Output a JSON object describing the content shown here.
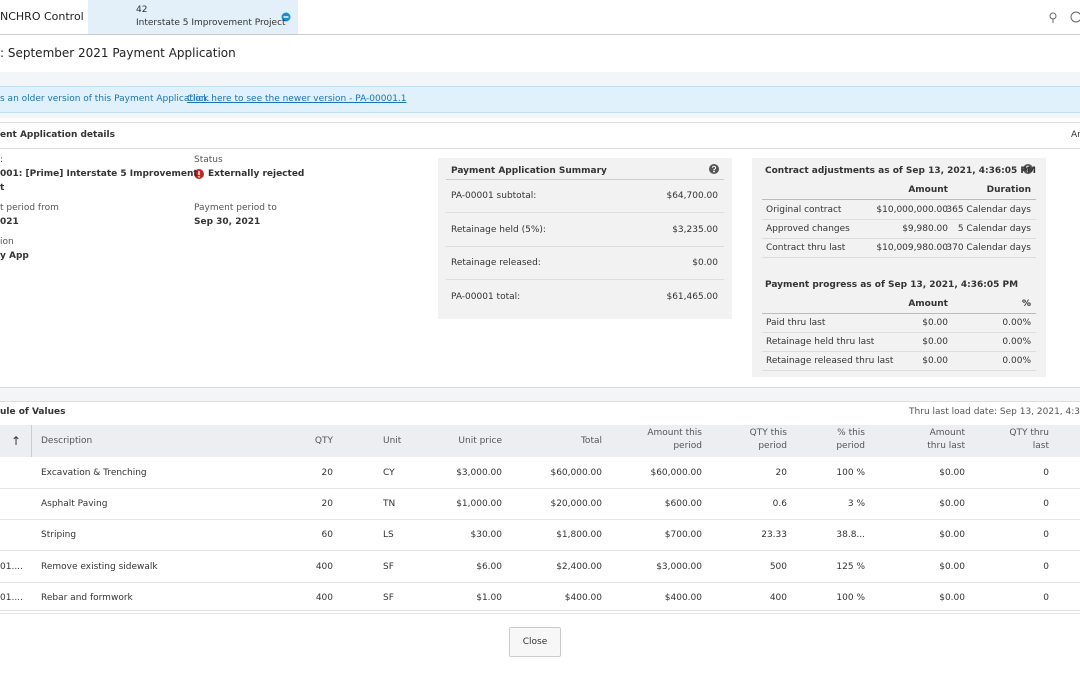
{
  "header": {
    "app_name": "NCHRO Control",
    "tab_number": "42",
    "tab_project": "Interstate 5 Improvement Project"
  },
  "title": ": September 2021 Payment Application",
  "banner": {
    "text": "s an older version of this Payment Application.",
    "link": "Click here to see the newer version - PA-00001.1"
  },
  "details": {
    "heading": "ent Application details",
    "heading_right": "Ar",
    "fields": [
      {
        "label": ":",
        "value": "001: [Prime] Interstate 5 Improvement\nt"
      },
      {
        "label": "t period from",
        "value": "021"
      },
      {
        "label": "ion",
        "value": "y App"
      },
      {
        "label": "Status",
        "value": "Externally rejected"
      },
      {
        "label": "Payment period to",
        "value": "Sep 30, 2021"
      }
    ]
  },
  "summary": {
    "title": "Payment Application Summary",
    "rows": [
      [
        "PA-00001 subtotal:",
        "$64,700.00"
      ],
      [
        "Retainage held (5%):",
        "$3,235.00"
      ],
      [
        "Retainage released:",
        "$0.00"
      ],
      [
        "PA-00001 total:",
        "$61,465.00"
      ]
    ]
  },
  "contract": {
    "title": "Contract adjustments as of Sep 13, 2021, 4:36:05 PM",
    "headers": [
      "Amount",
      "Duration"
    ],
    "rows": [
      [
        "Original contract",
        "$10,000,000.00",
        "365 Calendar days"
      ],
      [
        "Approved changes",
        "$9,980.00",
        "5 Calendar days"
      ],
      [
        "Contract thru last",
        "$10,009,980.00",
        "370 Calendar days"
      ]
    ]
  },
  "progress": {
    "title": "Payment progress as of Sep 13, 2021, 4:36:05 PM",
    "headers": [
      "Amount",
      "%"
    ],
    "rows": [
      [
        "Paid thru last",
        "$0.00",
        "0.00%"
      ],
      [
        "Retainage held thru last",
        "$0.00",
        "0.00%"
      ],
      [
        "Retainage released thru last",
        "$0.00",
        "0.00%"
      ]
    ]
  },
  "schedule": {
    "heading": "ule of Values",
    "load_date": "Thru last load date: Sep 13, 2021, 4:3",
    "sort_icon": "↑",
    "headers": [
      "Description",
      "QTY",
      "Unit",
      "Unit price",
      "Total",
      "Amount this period",
      "QTY this period",
      "% this period",
      "Amount thru last",
      "QTY thru last"
    ],
    "rows": [
      {
        "cells": [
          "Excavation & Trenching",
          "20",
          "CY",
          "$3,000.00",
          "$60,000.00",
          "$60,000.00",
          "20",
          "100 %",
          "$0.00",
          "0"
        ]
      },
      {
        "cells": [
          "Asphalt Paving",
          "20",
          "TN",
          "$1,000.00",
          "$20,000.00",
          "$600.00",
          "0.6",
          "3 %",
          "$0.00",
          "0"
        ]
      },
      {
        "cells": [
          "Striping",
          "60",
          "LS",
          "$30.00",
          "$1,800.00",
          "$700.00",
          "23.33",
          "38.8...",
          "$0.00",
          "0"
        ]
      },
      {
        "code": "01....",
        "cells": [
          "Remove existing sidewalk",
          "400",
          "SF",
          "$6.00",
          "$2,400.00",
          "$3,000.00",
          "500",
          "125 %",
          "$0.00",
          "0"
        ]
      },
      {
        "code": "01....",
        "cells": [
          "Rebar and formwork",
          "400",
          "SF",
          "$1.00",
          "$400.00",
          "$400.00",
          "400",
          "100 %",
          "$0.00",
          "0"
        ]
      }
    ]
  },
  "close_button": "Close"
}
